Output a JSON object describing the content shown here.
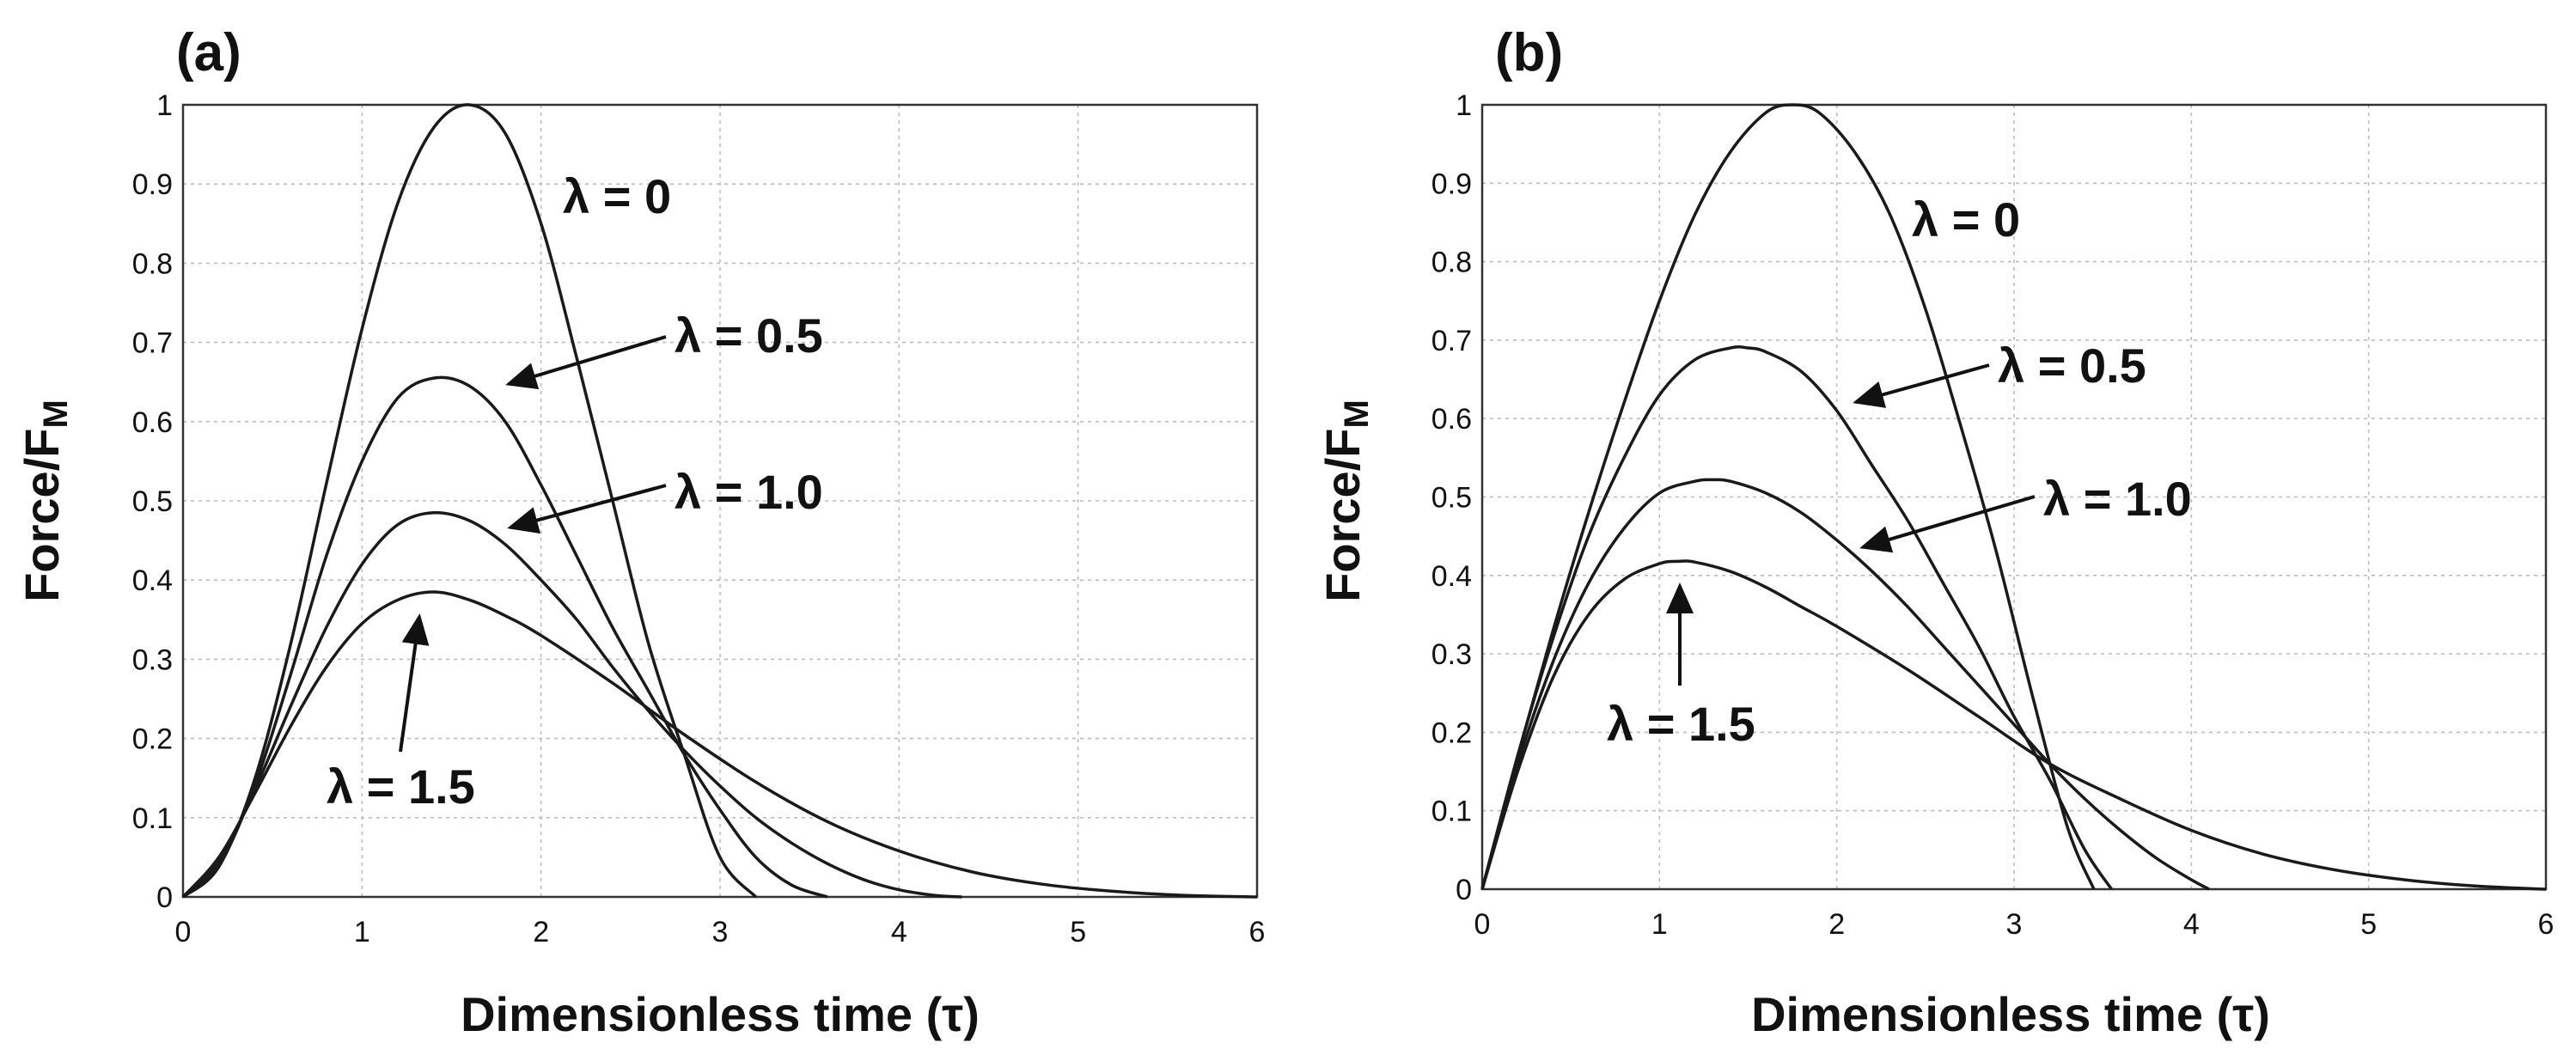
{
  "chart_data": [
    {
      "type": "line",
      "panel_label": "(a)",
      "xlabel": "Dimensionless time (τ)",
      "ylabel": "Force/F",
      "ylabel_subscript": "M",
      "xlim": [
        0,
        6
      ],
      "ylim": [
        0,
        1
      ],
      "xticks": [
        "0",
        "1",
        "2",
        "3",
        "4",
        "5",
        "6"
      ],
      "yticks": [
        "0",
        "0.1",
        "0.2",
        "0.3",
        "0.4",
        "0.5",
        "0.6",
        "0.7",
        "0.8",
        "0.9",
        "1"
      ],
      "grid": true,
      "series": [
        {
          "name": "λ = 0",
          "x": [
            0,
            0.2,
            0.4,
            0.6,
            0.8,
            1.0,
            1.2,
            1.4,
            1.6,
            1.8,
            2.0,
            2.2,
            2.4,
            2.6,
            2.8,
            3.0,
            3.2
          ],
          "values": [
            0,
            0.038,
            0.148,
            0.318,
            0.521,
            0.717,
            0.876,
            0.971,
            1.0,
            0.964,
            0.85,
            0.68,
            0.5,
            0.32,
            0.18,
            0.05,
            0
          ]
        },
        {
          "name": "λ = 0.5",
          "x": [
            0,
            0.2,
            0.4,
            0.6,
            0.8,
            1.0,
            1.2,
            1.4,
            1.6,
            1.8,
            2.0,
            2.2,
            2.4,
            2.6,
            2.8,
            3.0,
            3.2,
            3.4,
            3.6
          ],
          "values": [
            0,
            0.04,
            0.14,
            0.28,
            0.43,
            0.55,
            0.63,
            0.655,
            0.645,
            0.6,
            0.52,
            0.43,
            0.34,
            0.26,
            0.18,
            0.11,
            0.05,
            0.015,
            0
          ]
        },
        {
          "name": "λ = 1.0",
          "x": [
            0,
            0.2,
            0.4,
            0.6,
            0.8,
            1.0,
            1.2,
            1.4,
            1.6,
            1.8,
            2.0,
            2.2,
            2.4,
            2.6,
            2.8,
            3.0,
            3.2,
            3.4,
            3.6,
            3.8,
            4.0,
            4.2,
            4.35
          ],
          "values": [
            0,
            0.045,
            0.135,
            0.24,
            0.34,
            0.42,
            0.47,
            0.485,
            0.475,
            0.445,
            0.4,
            0.35,
            0.29,
            0.235,
            0.185,
            0.14,
            0.1,
            0.068,
            0.042,
            0.022,
            0.009,
            0.002,
            0
          ]
        },
        {
          "name": "λ = 1.5",
          "x": [
            0,
            0.2,
            0.4,
            0.6,
            0.8,
            1.0,
            1.2,
            1.4,
            1.6,
            1.8,
            2.0,
            2.4,
            2.8,
            3.2,
            3.6,
            4.0,
            4.4,
            4.8,
            5.2,
            5.6,
            6.0
          ],
          "values": [
            0,
            0.05,
            0.13,
            0.215,
            0.29,
            0.345,
            0.375,
            0.385,
            0.375,
            0.355,
            0.33,
            0.27,
            0.205,
            0.145,
            0.095,
            0.058,
            0.032,
            0.016,
            0.007,
            0.002,
            0
          ]
        }
      ],
      "annotations": [
        {
          "text": "λ = 0",
          "series": 0,
          "arrow": false
        },
        {
          "text": "λ = 0.5",
          "series": 1,
          "arrow": true
        },
        {
          "text": "λ = 1.0",
          "series": 2,
          "arrow": true
        },
        {
          "text": "λ = 1.5",
          "series": 3,
          "arrow": true
        }
      ]
    },
    {
      "type": "line",
      "panel_label": "(b)",
      "xlabel": "Dimensionless time (τ)",
      "ylabel": "Force/F",
      "ylabel_subscript": "M",
      "xlim": [
        0,
        6
      ],
      "ylim": [
        0,
        1
      ],
      "xticks": [
        "0",
        "1",
        "2",
        "3",
        "4",
        "5",
        "6"
      ],
      "yticks": [
        "0",
        "0.1",
        "0.2",
        "0.3",
        "0.4",
        "0.5",
        "0.6",
        "0.7",
        "0.8",
        "0.9",
        "1"
      ],
      "grid": true,
      "series": [
        {
          "name": "λ = 0",
          "x": [
            0,
            0.2,
            0.4,
            0.6,
            0.8,
            1.0,
            1.2,
            1.4,
            1.6,
            1.75,
            1.9,
            2.1,
            2.3,
            2.5,
            2.7,
            2.9,
            3.1,
            3.3,
            3.45
          ],
          "values": [
            0,
            0.17,
            0.33,
            0.48,
            0.62,
            0.75,
            0.86,
            0.94,
            0.99,
            1.0,
            0.99,
            0.94,
            0.86,
            0.74,
            0.59,
            0.43,
            0.25,
            0.08,
            0
          ]
        },
        {
          "name": "λ = 0.5",
          "x": [
            0,
            0.2,
            0.4,
            0.6,
            0.8,
            1.0,
            1.2,
            1.4,
            1.5,
            1.6,
            1.8,
            2.0,
            2.2,
            2.4,
            2.6,
            2.8,
            3.0,
            3.2,
            3.4,
            3.55
          ],
          "values": [
            0,
            0.17,
            0.32,
            0.45,
            0.55,
            0.63,
            0.675,
            0.69,
            0.69,
            0.685,
            0.66,
            0.61,
            0.54,
            0.47,
            0.39,
            0.31,
            0.22,
            0.14,
            0.05,
            0
          ]
        },
        {
          "name": "λ = 1.0",
          "x": [
            0,
            0.2,
            0.4,
            0.6,
            0.8,
            1.0,
            1.2,
            1.3,
            1.4,
            1.6,
            1.8,
            2.0,
            2.2,
            2.4,
            2.6,
            2.8,
            3.0,
            3.2,
            3.4,
            3.6,
            3.8,
            4.0,
            4.1
          ],
          "values": [
            0,
            0.16,
            0.29,
            0.39,
            0.46,
            0.505,
            0.52,
            0.522,
            0.52,
            0.505,
            0.48,
            0.445,
            0.405,
            0.36,
            0.31,
            0.26,
            0.21,
            0.16,
            0.115,
            0.075,
            0.04,
            0.012,
            0
          ]
        },
        {
          "name": "λ = 1.5",
          "x": [
            0,
            0.2,
            0.4,
            0.6,
            0.8,
            1.0,
            1.1,
            1.2,
            1.4,
            1.6,
            1.8,
            2.0,
            2.4,
            2.8,
            3.2,
            3.6,
            4.0,
            4.4,
            4.8,
            5.2,
            5.6,
            6.0
          ],
          "values": [
            0,
            0.15,
            0.27,
            0.35,
            0.395,
            0.415,
            0.418,
            0.417,
            0.405,
            0.385,
            0.36,
            0.335,
            0.28,
            0.22,
            0.16,
            0.115,
            0.075,
            0.045,
            0.025,
            0.012,
            0.004,
            0
          ]
        }
      ],
      "annotations": [
        {
          "text": "λ = 0",
          "series": 0,
          "arrow": false
        },
        {
          "text": "λ = 0.5",
          "series": 1,
          "arrow": true
        },
        {
          "text": "λ = 1.0",
          "series": 2,
          "arrow": true
        },
        {
          "text": "λ = 1.5",
          "series": 3,
          "arrow": true
        }
      ]
    }
  ]
}
